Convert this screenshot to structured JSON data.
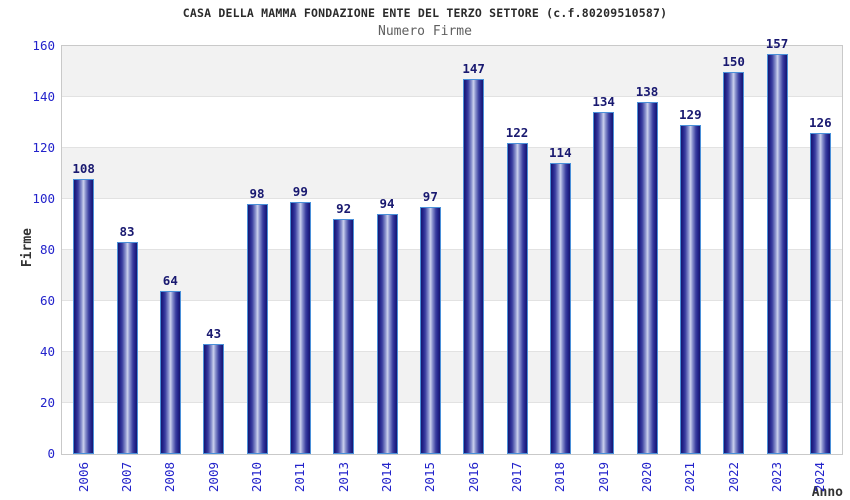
{
  "header": {
    "title": "CASA DELLA MAMMA FONDAZIONE ENTE DEL TERZO SETTORE (c.f.80209510587)",
    "subtitle": "Numero Firme"
  },
  "chart_data": {
    "type": "bar",
    "title": "CASA DELLA MAMMA FONDAZIONE ENTE DEL TERZO SETTORE (c.f.80209510587)",
    "subtitle": "Numero Firme",
    "xlabel": "Anno",
    "ylabel": "Firme",
    "categories": [
      "2006",
      "2007",
      "2008",
      "2009",
      "2010",
      "2011",
      "2013",
      "2014",
      "2015",
      "2016",
      "2017",
      "2018",
      "2019",
      "2020",
      "2021",
      "2022",
      "2023",
      "2024"
    ],
    "values": [
      108,
      83,
      64,
      43,
      98,
      99,
      92,
      94,
      97,
      147,
      122,
      114,
      134,
      138,
      129,
      150,
      157,
      126
    ],
    "ylim": [
      0,
      160
    ],
    "yticks": [
      0,
      20,
      40,
      60,
      80,
      100,
      120,
      140,
      160
    ],
    "grid": "horizontal-bands",
    "legend": null,
    "colors": {
      "bar_border": "#4a90d9",
      "bar_dark": "#17176e",
      "bar_light": "#ccd2ee",
      "tick_label": "#2323cb",
      "value_label": "#191970",
      "band_gray": "#f2f2f2",
      "band_white": "#ffffff",
      "title_text": "#2b2b2b",
      "subtitle_text": "#606060",
      "axis_label_text": "#333333"
    }
  }
}
